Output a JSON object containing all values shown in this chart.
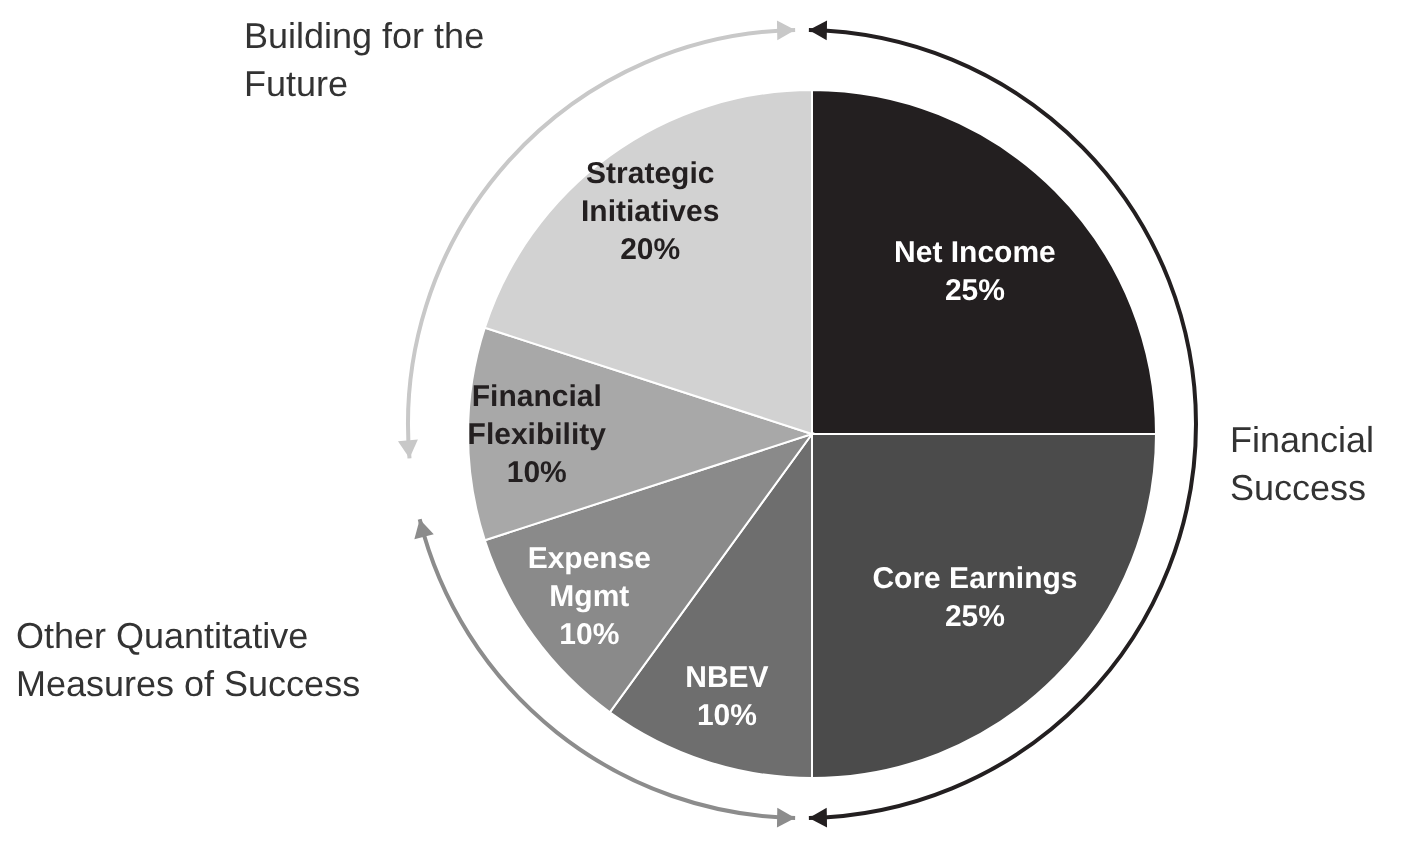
{
  "chart_data": {
    "type": "pie",
    "categories": [
      "Net Income",
      "Core Earnings",
      "NBEV",
      "Expense Mgmt",
      "Financial Flexibility",
      "Strategic Initiatives"
    ],
    "values": [
      25,
      25,
      10,
      10,
      10,
      20
    ],
    "colors": [
      "#231f20",
      "#4b4b4b",
      "#6e6e6e",
      "#8a8a8a",
      "#a8a8a8",
      "#d2d2d2"
    ],
    "value_labels": [
      "25%",
      "25%",
      "10%",
      "10%",
      "10%",
      "20%"
    ],
    "annotations": [
      "Financial Success",
      "Other Quantitative Measures of Success",
      "Building for the Future"
    ]
  }
}
